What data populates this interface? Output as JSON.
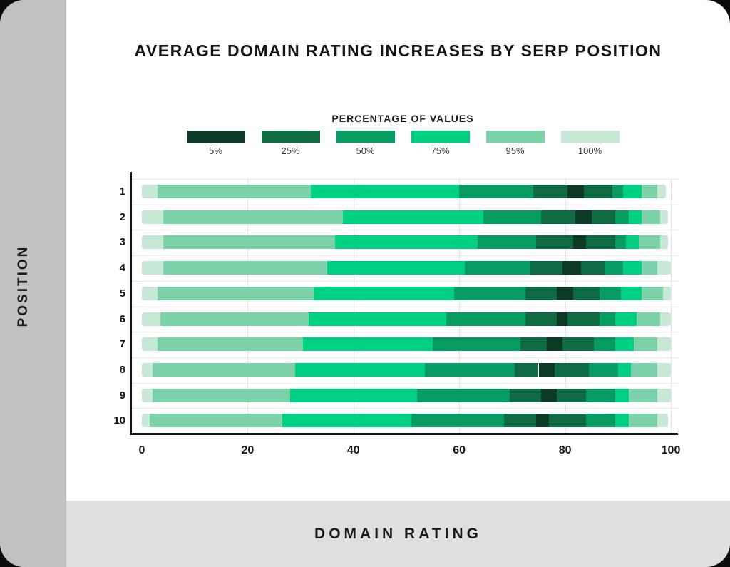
{
  "page": {
    "outer_background": "#0b0b0b",
    "card_background": "#ffffff",
    "left_strip_color": "#c1c1c1",
    "bottom_band_color": "#dfdfdf"
  },
  "title": "AVERAGE DOMAIN RATING INCREASES BY SERP POSITION",
  "y_axis_title": "POSITION",
  "x_axis_title": "DOMAIN RATING",
  "legend": {
    "title": "PERCENTAGE OF VALUES",
    "items": [
      {
        "label": "5%",
        "color": "#0d3a26"
      },
      {
        "label": "25%",
        "color": "#0e6b46"
      },
      {
        "label": "50%",
        "color": "#069b62"
      },
      {
        "label": "75%",
        "color": "#00d084"
      },
      {
        "label": "95%",
        "color": "#7dd3a9"
      },
      {
        "label": "100%",
        "color": "#c7e7d7"
      }
    ]
  },
  "chart_data": {
    "type": "bar",
    "subtype": "horizontal-percentile-band-stacked",
    "title": "AVERAGE DOMAIN RATING INCREASES BY SERP POSITION",
    "xlabel": "DOMAIN RATING",
    "ylabel": "POSITION",
    "xlim": [
      0,
      100
    ],
    "x_ticks": [
      "0",
      "20",
      "40",
      "60",
      "80",
      "100"
    ],
    "x_tick_values": [
      0,
      20,
      40,
      60,
      80,
      100
    ],
    "grid": true,
    "legend_position": "top",
    "legend_title": "PERCENTAGE OF VALUES",
    "band_labels": [
      "5%",
      "25%",
      "50%",
      "75%",
      "95%",
      "100%"
    ],
    "segment_shade_order": [
      "100%",
      "95%",
      "75%",
      "50%",
      "25%",
      "5%",
      "25%",
      "50%",
      "75%",
      "95%",
      "100%"
    ],
    "categories": [
      "1",
      "2",
      "3",
      "4",
      "5",
      "6",
      "7",
      "8",
      "9",
      "10"
    ],
    "rows": [
      {
        "position": "1",
        "boundaries": [
          0,
          3,
          32,
          60,
          74,
          80.5,
          83.5,
          89,
          91,
          94.5,
          97.5,
          99
        ]
      },
      {
        "position": "2",
        "boundaries": [
          0,
          4,
          38,
          64.5,
          75.5,
          82,
          85,
          89.5,
          92,
          94.5,
          98,
          99.5
        ]
      },
      {
        "position": "3",
        "boundaries": [
          0,
          4,
          36.5,
          63.5,
          74.5,
          81.5,
          84,
          89.5,
          91.5,
          94,
          98,
          99.5
        ]
      },
      {
        "position": "4",
        "boundaries": [
          0,
          4,
          35,
          61,
          73.5,
          79.5,
          83,
          87.5,
          91,
          94.5,
          97.5,
          100
        ]
      },
      {
        "position": "5",
        "boundaries": [
          0,
          3,
          32.5,
          59,
          72.5,
          78.5,
          81.5,
          86.5,
          90.5,
          94.5,
          98.5,
          100
        ]
      },
      {
        "position": "6",
        "boundaries": [
          0,
          3.5,
          31.5,
          57.5,
          72.5,
          78.5,
          80.5,
          86.5,
          89.5,
          93.5,
          98,
          100
        ]
      },
      {
        "position": "7",
        "boundaries": [
          0,
          3,
          30.5,
          55,
          71.5,
          76.5,
          79.5,
          85.5,
          89.5,
          93,
          97.5,
          100
        ]
      },
      {
        "position": "8",
        "boundaries": [
          0,
          2,
          29,
          53.5,
          70.5,
          75,
          78,
          84.5,
          90,
          92.5,
          97.5,
          100
        ]
      },
      {
        "position": "9",
        "boundaries": [
          0,
          2,
          28,
          52,
          69.5,
          75.5,
          78.5,
          84,
          89.5,
          92,
          97.5,
          100
        ]
      },
      {
        "position": "10",
        "boundaries": [
          0,
          1.5,
          26.5,
          51,
          68.5,
          74.5,
          77,
          84,
          89.5,
          92,
          97.5,
          99.5
        ]
      }
    ]
  }
}
